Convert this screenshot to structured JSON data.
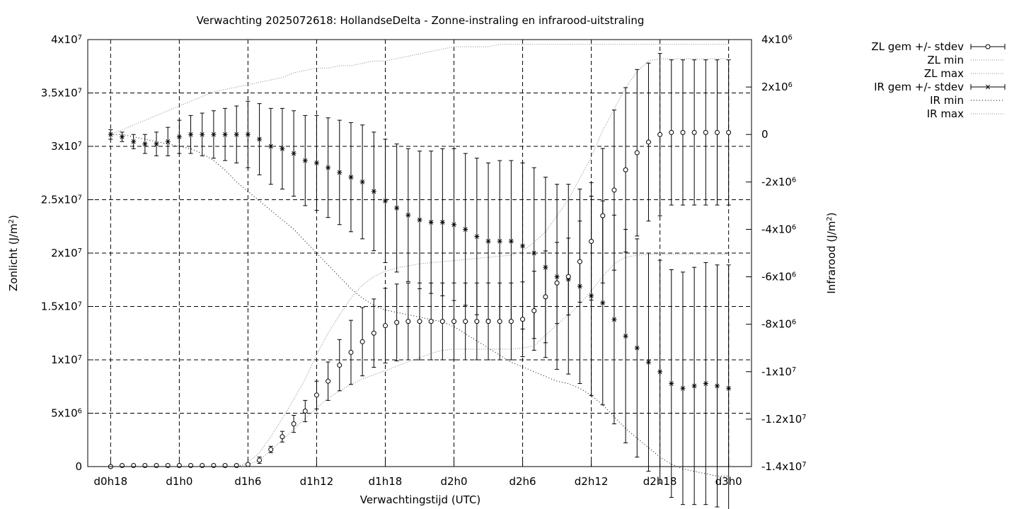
{
  "chart_data": {
    "type": "line",
    "title": "Verwachting 2025072618: HollandseDelta - Zonne-instraling en infrarood-uitstraling",
    "xlabel": "Verwachtingstijd (UTC)",
    "ylabel_left": "Zonlicht (J/m²)",
    "ylabel_right": "Infrarood (J/m²)",
    "x_ticks": [
      "d0h18",
      "d1h0",
      "d1h6",
      "d1h12",
      "d1h18",
      "d2h0",
      "d2h6",
      "d2h12",
      "d2h18",
      "d3h0"
    ],
    "x_range_hours": [
      -2,
      56
    ],
    "y_left_range": [
      0,
      40000000
    ],
    "y_right_range": [
      -14000000,
      4000000
    ],
    "y_left_ticks": [
      {
        "v": 0,
        "m": "0",
        "e": ""
      },
      {
        "v": 5000000,
        "m": "5x10",
        "e": "6"
      },
      {
        "v": 10000000,
        "m": "1x10",
        "e": "7"
      },
      {
        "v": 15000000,
        "m": "1.5x10",
        "e": "7"
      },
      {
        "v": 20000000,
        "m": "2x10",
        "e": "7"
      },
      {
        "v": 25000000,
        "m": "2.5x10",
        "e": "7"
      },
      {
        "v": 30000000,
        "m": "3x10",
        "e": "7"
      },
      {
        "v": 35000000,
        "m": "3.5x10",
        "e": "7"
      },
      {
        "v": 40000000,
        "m": "4x10",
        "e": "7"
      }
    ],
    "y_right_ticks": [
      {
        "v": -14000000,
        "m": "-1.4x10",
        "e": "7"
      },
      {
        "v": -12000000,
        "m": "-1.2x10",
        "e": "7"
      },
      {
        "v": -10000000,
        "m": "-1x10",
        "e": "7"
      },
      {
        "v": -8000000,
        "m": "-8x10",
        "e": "6"
      },
      {
        "v": -6000000,
        "m": "-6x10",
        "e": "6"
      },
      {
        "v": -4000000,
        "m": "-4x10",
        "e": "6"
      },
      {
        "v": -2000000,
        "m": "-2x10",
        "e": "6"
      },
      {
        "v": 0,
        "m": "0",
        "e": ""
      },
      {
        "v": 2000000,
        "m": "2x10",
        "e": "6"
      },
      {
        "v": 4000000,
        "m": "4x10",
        "e": "6"
      }
    ],
    "grid": true,
    "legend_position": "outside-right",
    "legend": [
      {
        "label": "ZL gem +/- stdev",
        "kind": "errorbar-circle"
      },
      {
        "label": "ZL min",
        "kind": "faint-dots"
      },
      {
        "label": "ZL max",
        "kind": "faint-dots"
      },
      {
        "label": "IR gem +/- stdev",
        "kind": "errorbar-star"
      },
      {
        "label": "IR min",
        "kind": "dots"
      },
      {
        "label": "IR max",
        "kind": "faint-dots"
      }
    ],
    "x_hours": [
      0,
      1,
      2,
      3,
      4,
      5,
      6,
      7,
      8,
      9,
      10,
      11,
      12,
      13,
      14,
      15,
      16,
      17,
      18,
      19,
      20,
      21,
      22,
      23,
      24,
      25,
      26,
      27,
      28,
      29,
      30,
      31,
      32,
      33,
      34,
      35,
      36,
      37,
      38,
      39,
      40,
      41,
      42,
      43,
      44,
      45,
      46,
      47,
      48,
      49,
      50,
      51,
      52,
      53,
      54
    ],
    "zl_mean": [
      0,
      100000,
      100000,
      100000,
      100000,
      100000,
      100000,
      100000,
      100000,
      100000,
      100000,
      100000,
      200000,
      600000,
      1600000,
      2800000,
      4000000,
      5200000,
      6700000,
      8000000,
      9500000,
      10700000,
      11700000,
      12500000,
      13200000,
      13500000,
      13600000,
      13600000,
      13600000,
      13600000,
      13600000,
      13600000,
      13600000,
      13600000,
      13600000,
      13600000,
      13800000,
      14600000,
      15900000,
      17200000,
      17800000,
      19200000,
      21100000,
      23500000,
      25900000,
      27800000,
      29400000,
      30400000,
      31100000,
      31300000,
      31300000,
      31300000,
      31300000,
      31300000,
      31300000
    ],
    "zl_sd": [
      0,
      0,
      0,
      0,
      0,
      0,
      0,
      0,
      0,
      0,
      0,
      0,
      100000,
      300000,
      300000,
      500000,
      800000,
      1000000,
      1300000,
      1800000,
      2400000,
      3000000,
      3200000,
      3200000,
      3500000,
      3600000,
      3600000,
      3600000,
      3600000,
      3600000,
      3600000,
      3600000,
      3600000,
      3600000,
      3600000,
      3600000,
      3500000,
      3700000,
      4300000,
      3800000,
      3600000,
      3800000,
      5500000,
      6300000,
      7500000,
      7700000,
      7800000,
      7400000,
      7600000,
      6800000,
      6800000,
      6800000,
      6800000,
      6800000,
      6800000
    ],
    "zl_min": [
      0,
      0,
      0,
      0,
      0,
      0,
      0,
      0,
      0,
      0,
      0,
      0,
      200000,
      600000,
      1500000,
      2500000,
      3500000,
      4500000,
      5500000,
      6400000,
      7100000,
      7700000,
      8200000,
      8600000,
      9000000,
      9400000,
      9800000,
      10200000,
      10600000,
      10900000,
      11000000,
      11000000,
      11000000,
      11000000,
      11000000,
      11000000,
      11100000,
      11300000,
      12300000,
      13300000,
      14200000,
      15200000,
      16500000,
      17800000,
      19000000,
      19600000,
      19800000,
      19900000,
      19900000,
      19900000,
      19900000,
      19900000,
      19900000,
      19900000,
      19900000
    ],
    "zl_max": [
      0,
      0,
      0,
      0,
      0,
      0,
      0,
      0,
      0,
      0,
      0,
      0,
      400000,
      1300000,
      2800000,
      4500000,
      6300000,
      8200000,
      10500000,
      12500000,
      14200000,
      15800000,
      17000000,
      17800000,
      18300000,
      18600000,
      18800000,
      19000000,
      19100000,
      19200000,
      19300000,
      19400000,
      19500000,
      19600000,
      19700000,
      19800000,
      20200000,
      21000000,
      22000000,
      23500000,
      25000000,
      27000000,
      29000000,
      31500000,
      33500000,
      35500000,
      37000000,
      38000000,
      38200000,
      38200000,
      38200000,
      38200000,
      38200000,
      38200000,
      38200000
    ],
    "ir_mean": [
      0,
      -100000,
      -300000,
      -400000,
      -400000,
      -300000,
      -100000,
      0,
      0,
      0,
      0,
      0,
      0,
      -200000,
      -500000,
      -600000,
      -800000,
      -1100000,
      -1200000,
      -1400000,
      -1600000,
      -1800000,
      -2000000,
      -2400000,
      -2800000,
      -3100000,
      -3400000,
      -3600000,
      -3700000,
      -3700000,
      -3800000,
      -4000000,
      -4300000,
      -4500000,
      -4500000,
      -4500000,
      -4700000,
      -5000000,
      -5600000,
      -6000000,
      -6100000,
      -6400000,
      -6800000,
      -7100000,
      -7800000,
      -8500000,
      -9000000,
      -9600000,
      -10000000,
      -10500000,
      -10700000,
      -10600000,
      -10500000,
      -10600000,
      -10700000
    ],
    "ir_sd": [
      200000,
      200000,
      300000,
      400000,
      500000,
      600000,
      700000,
      800000,
      900000,
      1000000,
      1100000,
      1200000,
      1400000,
      1500000,
      1600000,
      1700000,
      1800000,
      1900000,
      2000000,
      2100000,
      2200000,
      2300000,
      2400000,
      2500000,
      2600000,
      2700000,
      2800000,
      2900000,
      3000000,
      3100000,
      3200000,
      3200000,
      3300000,
      3300000,
      3400000,
      3400000,
      3500000,
      3600000,
      3800000,
      3900000,
      4000000,
      4100000,
      4200000,
      4300000,
      4400000,
      4500000,
      4600000,
      4600000,
      4700000,
      4800000,
      4900000,
      5000000,
      5100000,
      5100000,
      5200000
    ],
    "ir_min": [
      0,
      0,
      -100000,
      -200000,
      -300000,
      -400000,
      -500000,
      -600000,
      -800000,
      -1100000,
      -1500000,
      -2000000,
      -2400000,
      -2800000,
      -3200000,
      -3600000,
      -4000000,
      -4500000,
      -5000000,
      -5500000,
      -6000000,
      -6500000,
      -6900000,
      -7200000,
      -7400000,
      -7500000,
      -7600000,
      -7700000,
      -7800000,
      -7900000,
      -8100000,
      -8400000,
      -8700000,
      -9000000,
      -9300000,
      -9600000,
      -9800000,
      -10000000,
      -10200000,
      -10400000,
      -10500000,
      -10700000,
      -11000000,
      -11400000,
      -11900000,
      -12400000,
      -12800000,
      -13200000,
      -13600000,
      -13900000,
      -14100000,
      -14200000,
      -14300000,
      -14400000,
      -14400000
    ],
    "ir_max": [
      0,
      200000,
      400000,
      600000,
      800000,
      1000000,
      1200000,
      1400000,
      1600000,
      1800000,
      1900000,
      2000000,
      2100000,
      2200000,
      2300000,
      2400000,
      2600000,
      2700000,
      2800000,
      2800000,
      2900000,
      2900000,
      3000000,
      3100000,
      3100000,
      3200000,
      3300000,
      3400000,
      3500000,
      3600000,
      3700000,
      3700000,
      3700000,
      3700000,
      3800000,
      3800000,
      3800000,
      3800000,
      3800000,
      3800000,
      3800000,
      3800000,
      3800000,
      3800000,
      3800000,
      3800000,
      3800000,
      3800000,
      3800000,
      3800000,
      3800000,
      3800000,
      3800000,
      3800000,
      3800000
    ]
  }
}
